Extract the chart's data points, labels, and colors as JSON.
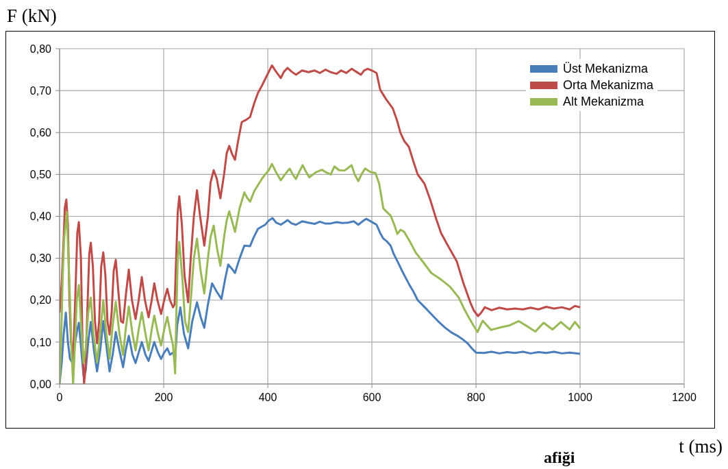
{
  "chart_data": {
    "type": "line",
    "ylabel": "F (kN)",
    "xlabel": "t (ms)",
    "annotations": [
      "afiği"
    ],
    "xlim": [
      0,
      1200
    ],
    "xticks": [
      0,
      200,
      400,
      600,
      800,
      1000,
      1200
    ],
    "ylim": [
      0,
      0.8
    ],
    "yticks": [
      {
        "value": 0,
        "label": "0,00"
      },
      {
        "value": 0.1,
        "label": "0,10"
      },
      {
        "value": 0.2,
        "label": "0,20"
      },
      {
        "value": 0.3,
        "label": "0,30"
      },
      {
        "value": 0.4,
        "label": "0,40"
      },
      {
        "value": 0.5,
        "label": "0,50"
      },
      {
        "value": 0.6,
        "label": "0,60"
      },
      {
        "value": 0.7,
        "label": "0,70"
      },
      {
        "value": 0.8,
        "label": "0,80"
      }
    ],
    "grid": true,
    "legend": "top right",
    "marker": "none",
    "line_style": "solid",
    "series": [
      {
        "name": "Üst Mekanizma",
        "color": "#4a7ebb",
        "x": [
          0,
          4,
          8,
          12,
          16,
          20,
          25,
          30,
          34,
          37,
          41,
          46,
          50,
          55,
          60,
          66,
          72,
          78,
          84,
          90,
          96,
          102,
          108,
          115,
          122,
          127,
          133,
          140,
          146,
          152,
          158,
          165,
          171,
          177,
          182,
          189,
          195,
          201,
          207,
          212,
          218,
          222,
          226,
          232,
          239,
          247,
          255,
          264,
          271,
          278,
          285,
          293,
          302,
          311,
          318,
          324,
          331,
          337,
          346,
          355,
          366,
          373,
          381,
          388,
          395,
          402,
          409,
          416,
          425,
          431,
          438,
          446,
          454,
          466,
          478,
          490,
          500,
          510,
          521,
          532,
          543,
          554,
          565,
          574,
          582,
          589,
          598,
          609,
          616,
          622,
          629,
          636,
          642,
          649,
          660,
          671,
          680,
          688,
          700,
          714,
          727,
          741,
          754,
          767,
          776,
          784,
          792,
          800,
          815,
          830,
          845,
          860,
          875,
          890,
          905,
          920,
          935,
          950,
          965,
          980,
          1000
        ],
        "values": [
          0.0,
          0.05,
          0.12,
          0.17,
          0.1,
          0.06,
          0.05,
          0.1,
          0.13,
          0.146,
          0.09,
          0.02,
          0.03,
          0.1,
          0.148,
          0.08,
          0.03,
          0.08,
          0.15,
          0.09,
          0.03,
          0.07,
          0.124,
          0.08,
          0.04,
          0.08,
          0.115,
          0.07,
          0.05,
          0.075,
          0.1,
          0.07,
          0.055,
          0.08,
          0.1,
          0.075,
          0.06,
          0.075,
          0.085,
          0.07,
          0.075,
          0.06,
          0.14,
          0.183,
          0.12,
          0.085,
          0.15,
          0.195,
          0.16,
          0.134,
          0.19,
          0.24,
          0.22,
          0.203,
          0.25,
          0.285,
          0.275,
          0.265,
          0.3,
          0.33,
          0.329,
          0.35,
          0.37,
          0.375,
          0.38,
          0.39,
          0.396,
          0.385,
          0.38,
          0.385,
          0.391,
          0.383,
          0.38,
          0.388,
          0.385,
          0.382,
          0.387,
          0.383,
          0.383,
          0.386,
          0.384,
          0.385,
          0.388,
          0.38,
          0.388,
          0.394,
          0.388,
          0.38,
          0.36,
          0.347,
          0.34,
          0.33,
          0.31,
          0.293,
          0.265,
          0.239,
          0.22,
          0.2,
          0.185,
          0.167,
          0.15,
          0.134,
          0.122,
          0.113,
          0.105,
          0.097,
          0.085,
          0.075,
          0.074,
          0.077,
          0.073,
          0.076,
          0.074,
          0.077,
          0.073,
          0.076,
          0.074,
          0.077,
          0.073,
          0.075,
          0.072
        ]
      },
      {
        "name": "Orta Mekanizma",
        "color": "#be4b48",
        "x": [
          0,
          4,
          8,
          10,
          13,
          16,
          19,
          22,
          26,
          30,
          34,
          37,
          41,
          44,
          47,
          50,
          54,
          57,
          60,
          64,
          68,
          72,
          76,
          80,
          84,
          88,
          92,
          96,
          100,
          104,
          108,
          113,
          118,
          122,
          128,
          133,
          139,
          146,
          152,
          158,
          164,
          171,
          177,
          182,
          188,
          195,
          201,
          207,
          212,
          218,
          221,
          224,
          227,
          230,
          235,
          240,
          247,
          252,
          258,
          264,
          270,
          278,
          285,
          290,
          296,
          302,
          309,
          316,
          321,
          326,
          331,
          337,
          343,
          350,
          358,
          366,
          374,
          381,
          388,
          396,
          402,
          408,
          416,
          425,
          431,
          438,
          446,
          454,
          466,
          478,
          490,
          500,
          511,
          521,
          532,
          541,
          551,
          561,
          570,
          579,
          585,
          592,
          600,
          609,
          616,
          627,
          640,
          648,
          655,
          662,
          671,
          680,
          688,
          694,
          701,
          712,
          723,
          733,
          743,
          753,
          763,
          776,
          789,
          796,
          804,
          810,
          817,
          830,
          845,
          860,
          875,
          890,
          905,
          920,
          935,
          950,
          965,
          980,
          990,
          1000
        ],
        "values": [
          0.17,
          0.24,
          0.35,
          0.42,
          0.44,
          0.38,
          0.2,
          0.1,
          0.06,
          0.2,
          0.36,
          0.386,
          0.3,
          0.1,
          0.0,
          0.04,
          0.2,
          0.31,
          0.337,
          0.28,
          0.15,
          0.097,
          0.15,
          0.28,
          0.314,
          0.26,
          0.15,
          0.118,
          0.17,
          0.27,
          0.296,
          0.22,
          0.15,
          0.146,
          0.22,
          0.273,
          0.2,
          0.155,
          0.2,
          0.255,
          0.2,
          0.159,
          0.2,
          0.24,
          0.2,
          0.167,
          0.2,
          0.227,
          0.2,
          0.183,
          0.19,
          0.3,
          0.41,
          0.448,
          0.38,
          0.26,
          0.195,
          0.3,
          0.4,
          0.462,
          0.4,
          0.33,
          0.4,
          0.48,
          0.51,
          0.49,
          0.443,
          0.5,
          0.55,
          0.568,
          0.55,
          0.535,
          0.58,
          0.625,
          0.63,
          0.637,
          0.67,
          0.694,
          0.71,
          0.73,
          0.745,
          0.76,
          0.745,
          0.73,
          0.745,
          0.754,
          0.745,
          0.738,
          0.748,
          0.744,
          0.748,
          0.742,
          0.75,
          0.744,
          0.74,
          0.748,
          0.742,
          0.752,
          0.745,
          0.738,
          0.748,
          0.752,
          0.748,
          0.742,
          0.702,
          0.68,
          0.658,
          0.63,
          0.599,
          0.58,
          0.566,
          0.53,
          0.5,
          0.49,
          0.478,
          0.44,
          0.396,
          0.36,
          0.337,
          0.315,
          0.293,
          0.24,
          0.195,
          0.175,
          0.162,
          0.17,
          0.183,
          0.176,
          0.182,
          0.178,
          0.18,
          0.178,
          0.182,
          0.178,
          0.184,
          0.18,
          0.183,
          0.178,
          0.186,
          0.183
        ]
      },
      {
        "name": "Alt Mekanizma",
        "color": "#98b954",
        "x": [
          0,
          3,
          6,
          9,
          14,
          17,
          20,
          23,
          26,
          29,
          33,
          37,
          41,
          46,
          50,
          55,
          60,
          65,
          72,
          78,
          84,
          90,
          96,
          102,
          108,
          115,
          122,
          127,
          133,
          140,
          146,
          152,
          158,
          165,
          171,
          177,
          182,
          189,
          195,
          201,
          207,
          213,
          218,
          220,
          222,
          224,
          227,
          230,
          236,
          241,
          247,
          252,
          258,
          264,
          271,
          278,
          285,
          290,
          296,
          303,
          309,
          316,
          321,
          326,
          331,
          337,
          346,
          355,
          360,
          366,
          374,
          383,
          389,
          395,
          402,
          408,
          416,
          425,
          433,
          442,
          448,
          454,
          460,
          467,
          474,
          480,
          492,
          504,
          512,
          521,
          528,
          537,
          547,
          554,
          561,
          567,
          574,
          580,
          587,
          597,
          607,
          614,
          622,
          629,
          636,
          643,
          649,
          655,
          662,
          673,
          684,
          699,
          714,
          732,
          750,
          758,
          767,
          777,
          787,
          795,
          803,
          808,
          813,
          821,
          829,
          847,
          865,
          882,
          898,
          914,
          930,
          947,
          963,
          980,
          990,
          1000
        ],
        "values": [
          0.0,
          0.1,
          0.26,
          0.35,
          0.41,
          0.3,
          0.2,
          0.08,
          0.0,
          0.08,
          0.2,
          0.236,
          0.15,
          0.05,
          0.08,
          0.17,
          0.206,
          0.12,
          0.052,
          0.12,
          0.2,
          0.12,
          0.06,
          0.14,
          0.196,
          0.12,
          0.069,
          0.13,
          0.185,
          0.12,
          0.08,
          0.13,
          0.171,
          0.12,
          0.08,
          0.13,
          0.163,
          0.12,
          0.092,
          0.13,
          0.16,
          0.12,
          0.092,
          0.06,
          0.025,
          0.15,
          0.3,
          0.339,
          0.25,
          0.15,
          0.124,
          0.2,
          0.3,
          0.347,
          0.27,
          0.216,
          0.3,
          0.35,
          0.378,
          0.32,
          0.282,
          0.35,
          0.39,
          0.412,
          0.39,
          0.363,
          0.42,
          0.457,
          0.445,
          0.435,
          0.46,
          0.478,
          0.49,
          0.5,
          0.51,
          0.525,
          0.505,
          0.486,
          0.5,
          0.514,
          0.5,
          0.489,
          0.505,
          0.522,
          0.505,
          0.493,
          0.505,
          0.511,
          0.505,
          0.5,
          0.519,
          0.51,
          0.509,
          0.515,
          0.522,
          0.5,
          0.484,
          0.5,
          0.514,
          0.506,
          0.503,
          0.478,
          0.419,
          0.41,
          0.402,
          0.38,
          0.358,
          0.368,
          0.363,
          0.34,
          0.314,
          0.29,
          0.265,
          0.25,
          0.232,
          0.22,
          0.206,
          0.18,
          0.157,
          0.14,
          0.124,
          0.138,
          0.151,
          0.14,
          0.129,
          0.135,
          0.14,
          0.15,
          0.138,
          0.125,
          0.146,
          0.13,
          0.148,
          0.13,
          0.148,
          0.133
        ]
      }
    ]
  }
}
